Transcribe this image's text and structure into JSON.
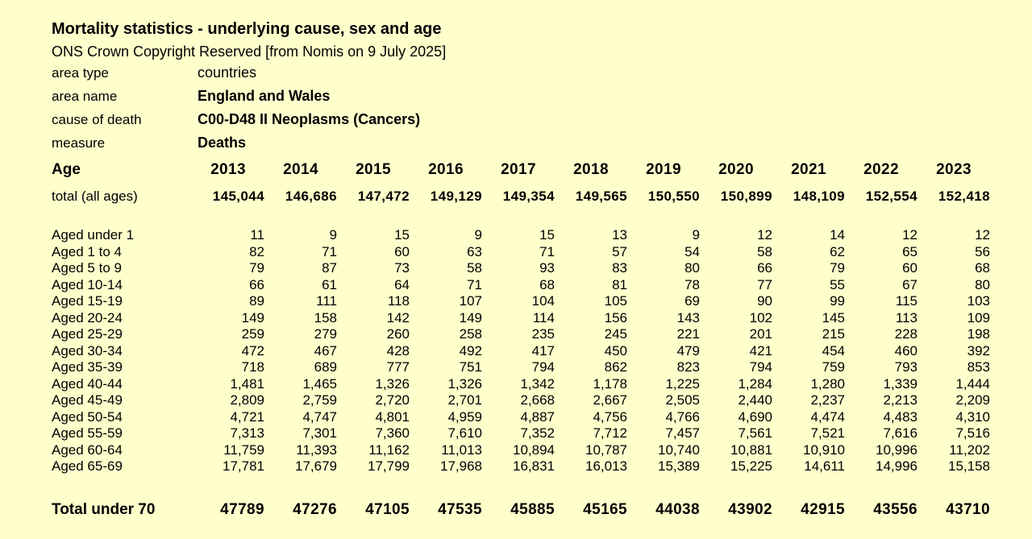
{
  "page": {
    "background_color": "#ffffcc",
    "text_color": "#000000"
  },
  "header": {
    "title": "Mortality statistics - underlying cause, sex and age",
    "copyright": "ONS Crown Copyright Reserved [from Nomis on 9 July 2025]"
  },
  "metadata": {
    "area_type_label": "area type",
    "area_type_value": "countries",
    "area_name_label": "area name",
    "area_name_value": "England and Wales",
    "cause_of_death_label": "cause of death",
    "cause_of_death_value": "C00-D48 II Neoplasms (Cancers)",
    "measure_label": "measure",
    "measure_value": "Deaths"
  },
  "table": {
    "age_column_header": "Age",
    "years": [
      "2013",
      "2014",
      "2015",
      "2016",
      "2017",
      "2018",
      "2019",
      "2020",
      "2021",
      "2022",
      "2023"
    ],
    "total_all_ages": {
      "label": "total (all ages)",
      "values": [
        "145,044",
        "146,686",
        "147,472",
        "149,129",
        "149,354",
        "149,565",
        "150,550",
        "150,899",
        "148,109",
        "152,554",
        "152,418"
      ]
    },
    "rows": [
      {
        "label": "Aged under 1",
        "values": [
          "11",
          "9",
          "15",
          "9",
          "15",
          "13",
          "9",
          "12",
          "14",
          "12",
          "12"
        ]
      },
      {
        "label": "Aged 1 to 4",
        "values": [
          "82",
          "71",
          "60",
          "63",
          "71",
          "57",
          "54",
          "58",
          "62",
          "65",
          "56"
        ]
      },
      {
        "label": "Aged 5 to 9",
        "values": [
          "79",
          "87",
          "73",
          "58",
          "93",
          "83",
          "80",
          "66",
          "79",
          "60",
          "68"
        ]
      },
      {
        "label": "Aged 10-14",
        "values": [
          "66",
          "61",
          "64",
          "71",
          "68",
          "81",
          "78",
          "77",
          "55",
          "67",
          "80"
        ]
      },
      {
        "label": "Aged 15-19",
        "values": [
          "89",
          "111",
          "118",
          "107",
          "104",
          "105",
          "69",
          "90",
          "99",
          "115",
          "103"
        ]
      },
      {
        "label": "Aged 20-24",
        "values": [
          "149",
          "158",
          "142",
          "149",
          "114",
          "156",
          "143",
          "102",
          "145",
          "113",
          "109"
        ]
      },
      {
        "label": "Aged 25-29",
        "values": [
          "259",
          "279",
          "260",
          "258",
          "235",
          "245",
          "221",
          "201",
          "215",
          "228",
          "198"
        ]
      },
      {
        "label": "Aged 30-34",
        "values": [
          "472",
          "467",
          "428",
          "492",
          "417",
          "450",
          "479",
          "421",
          "454",
          "460",
          "392"
        ]
      },
      {
        "label": "Aged 35-39",
        "values": [
          "718",
          "689",
          "777",
          "751",
          "794",
          "862",
          "823",
          "794",
          "759",
          "793",
          "853"
        ]
      },
      {
        "label": "Aged 40-44",
        "values": [
          "1,481",
          "1,465",
          "1,326",
          "1,326",
          "1,342",
          "1,178",
          "1,225",
          "1,284",
          "1,280",
          "1,339",
          "1,444"
        ]
      },
      {
        "label": "Aged 45-49",
        "values": [
          "2,809",
          "2,759",
          "2,720",
          "2,701",
          "2,668",
          "2,667",
          "2,505",
          "2,440",
          "2,237",
          "2,213",
          "2,209"
        ]
      },
      {
        "label": "Aged 50-54",
        "values": [
          "4,721",
          "4,747",
          "4,801",
          "4,959",
          "4,887",
          "4,756",
          "4,766",
          "4,690",
          "4,474",
          "4,483",
          "4,310"
        ]
      },
      {
        "label": "Aged 55-59",
        "values": [
          "7,313",
          "7,301",
          "7,360",
          "7,610",
          "7,352",
          "7,712",
          "7,457",
          "7,561",
          "7,521",
          "7,616",
          "7,516"
        ]
      },
      {
        "label": "Aged 60-64",
        "values": [
          "11,759",
          "11,393",
          "11,162",
          "11,013",
          "10,894",
          "10,787",
          "10,740",
          "10,881",
          "10,910",
          "10,996",
          "11,202"
        ]
      },
      {
        "label": "Aged 65-69",
        "values": [
          "17,781",
          "17,679",
          "17,799",
          "17,968",
          "16,831",
          "16,013",
          "15,389",
          "15,225",
          "14,611",
          "14,996",
          "15,158"
        ]
      }
    ],
    "total_under_70": {
      "label": "Total under 70",
      "values": [
        "47789",
        "47276",
        "47105",
        "47535",
        "45885",
        "45165",
        "44038",
        "43902",
        "42915",
        "43556",
        "43710"
      ]
    }
  }
}
